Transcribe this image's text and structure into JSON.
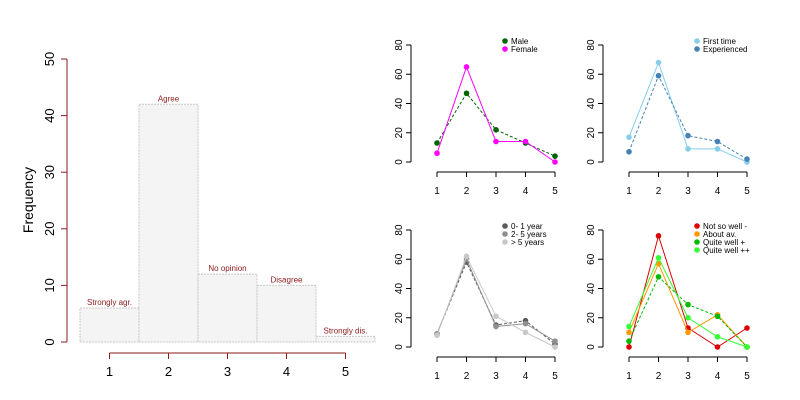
{
  "chart_data": [
    {
      "type": "bar",
      "ylabel": "Frequency",
      "categories": [
        "1",
        "2",
        "3",
        "4",
        "5"
      ],
      "values": [
        6,
        42,
        12,
        10,
        1
      ],
      "bar_labels": [
        "Strongly agr.",
        "Agree",
        "No opinion",
        "Disagree",
        "Strongly dis."
      ],
      "yticks": [
        "0",
        "10",
        "20",
        "30",
        "40",
        "50"
      ],
      "ylim": [
        0,
        50
      ],
      "grid": false,
      "colors": {
        "bar_fill": "#f4f4f4",
        "bar_stroke": "#c8c8c8",
        "axis": "#8b1a1a",
        "label": "#8b1a1a"
      }
    },
    {
      "type": "line",
      "x": [
        1,
        2,
        3,
        4,
        5
      ],
      "xticks": [
        "1",
        "2",
        "3",
        "4",
        "5"
      ],
      "yticks": [
        "0",
        "20",
        "40",
        "60",
        "80"
      ],
      "ylim": [
        0,
        80
      ],
      "legend_position": "top-right",
      "series": [
        {
          "name": "Male",
          "values": [
            13,
            47,
            22,
            13,
            4
          ],
          "color": "#006400",
          "dashed": true
        },
        {
          "name": "Female",
          "values": [
            6,
            65,
            14,
            14,
            0
          ],
          "color": "#ff00ff",
          "dashed": false
        }
      ]
    },
    {
      "type": "line",
      "x": [
        1,
        2,
        3,
        4,
        5
      ],
      "xticks": [
        "1",
        "2",
        "3",
        "4",
        "5"
      ],
      "yticks": [
        "0",
        "20",
        "40",
        "60",
        "80"
      ],
      "ylim": [
        0,
        80
      ],
      "legend_position": "top-right",
      "series": [
        {
          "name": "First time",
          "values": [
            17,
            68,
            9,
            9,
            0
          ],
          "color": "#87ceeb",
          "dashed": false
        },
        {
          "name": "Experienced",
          "values": [
            7,
            59,
            18,
            14,
            2
          ],
          "color": "#4682b4",
          "dashed": true
        }
      ]
    },
    {
      "type": "line",
      "x": [
        1,
        2,
        3,
        4,
        5
      ],
      "xticks": [
        "1",
        "2",
        "3",
        "4",
        "5"
      ],
      "yticks": [
        "0",
        "20",
        "40",
        "60",
        "80"
      ],
      "ylim": [
        0,
        80
      ],
      "legend_position": "top-right",
      "series": [
        {
          "name": "0- 1 year",
          "values": [
            9,
            58,
            15,
            18,
            2
          ],
          "color": "#5a5a5a",
          "dashed": true
        },
        {
          "name": "2- 5 years",
          "values": [
            9,
            60,
            14,
            16,
            4
          ],
          "color": "#909090",
          "dashed": false
        },
        {
          "name": "> 5 years",
          "values": [
            8,
            62,
            21,
            10,
            0
          ],
          "color": "#c8c8c8",
          "dashed": false
        }
      ]
    },
    {
      "type": "line",
      "x": [
        1,
        2,
        3,
        4,
        5
      ],
      "xticks": [
        "1",
        "2",
        "3",
        "4",
        "5"
      ],
      "yticks": [
        "0",
        "20",
        "40",
        "60",
        "80"
      ],
      "ylim": [
        0,
        80
      ],
      "legend_position": "top-right",
      "series": [
        {
          "name": "Not so well -",
          "values": [
            0,
            76,
            13,
            0,
            13
          ],
          "color": "#dd0000",
          "dashed": false
        },
        {
          "name": "About av.",
          "values": [
            10,
            57,
            10,
            22,
            0
          ],
          "color": "#ff9900",
          "dashed": false
        },
        {
          "name": "Quite well +",
          "values": [
            4,
            48,
            29,
            21,
            0
          ],
          "color": "#00bb00",
          "dashed": true
        },
        {
          "name": "Quite well ++",
          "values": [
            14,
            61,
            20,
            7,
            0
          ],
          "color": "#33ff33",
          "dashed": false
        }
      ]
    }
  ]
}
